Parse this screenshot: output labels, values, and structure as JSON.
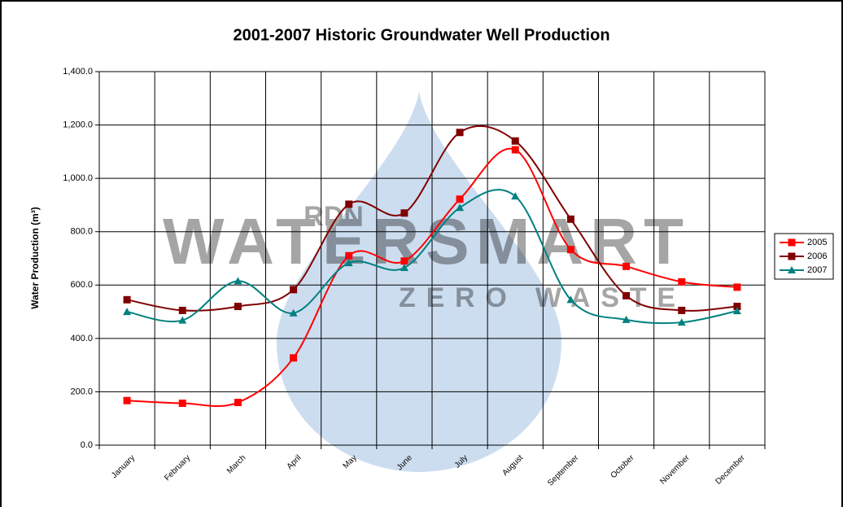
{
  "chart_data": {
    "type": "line",
    "title": "2001-2007 Historic Groundwater Well Production",
    "y_label": "Water Production (m³)",
    "watermark": {
      "logo": "RDN",
      "text": "WATERSMART",
      "subtext": "ZERO WASTE"
    },
    "categories": [
      "January",
      "February",
      "March",
      "April",
      "May",
      "June",
      "July",
      "August",
      "September",
      "October",
      "November",
      "December"
    ],
    "series": [
      {
        "name": "2005",
        "color": "#ff0000",
        "marker": "square",
        "values": [
          167,
          157,
          160,
          327,
          710,
          690,
          922,
          1107,
          733,
          670,
          612,
          592
        ]
      },
      {
        "name": "2006",
        "color": "#800000",
        "marker": "square",
        "values": [
          545,
          505,
          520,
          583,
          903,
          870,
          1172,
          1140,
          847,
          560,
          505,
          520
        ]
      },
      {
        "name": "2007",
        "color": "#008080",
        "marker": "triangle",
        "values": [
          500,
          468,
          615,
          495,
          683,
          665,
          890,
          933,
          545,
          470,
          460,
          503
        ]
      }
    ],
    "ylim": [
      0,
      1400
    ],
    "yticks": [
      {
        "value": 0,
        "label": "0.0"
      },
      {
        "value": 200,
        "label": "200.0"
      },
      {
        "value": 400,
        "label": "400.0"
      },
      {
        "value": 600,
        "label": "600.0"
      },
      {
        "value": 800,
        "label": "800.0"
      },
      {
        "value": 1000,
        "label": "1,000.0"
      },
      {
        "value": 1200,
        "label": "1,200.0"
      },
      {
        "value": 1400,
        "label": "1,400.0"
      }
    ],
    "grid": true,
    "smooth": true,
    "legend": "right"
  }
}
